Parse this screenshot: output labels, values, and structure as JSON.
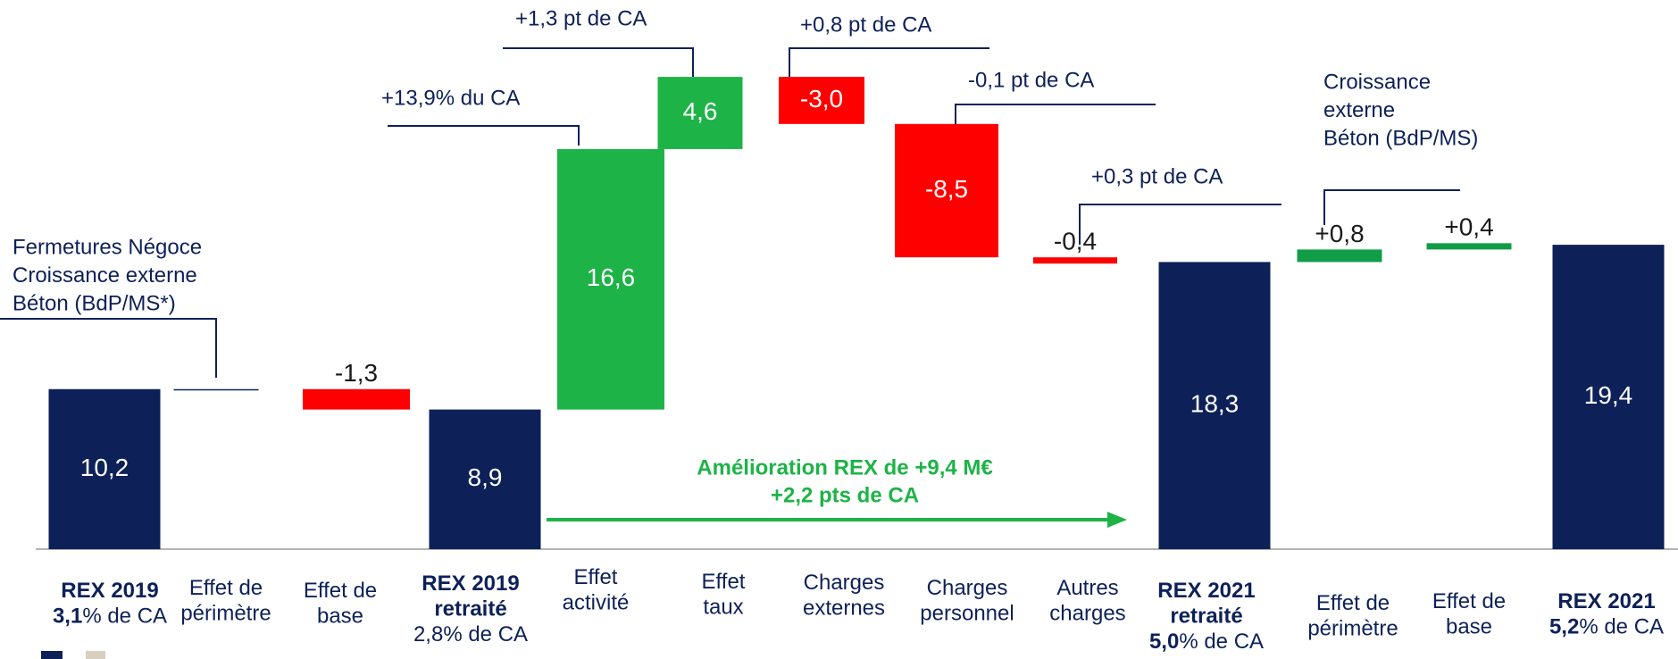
{
  "chart_data": {
    "type": "waterfall",
    "categories": [
      [
        [
          {
            "text": "REX 2019",
            "bold": true
          }
        ],
        [
          {
            "text": "3,1",
            "bold": true
          },
          {
            "text": "% de CA"
          }
        ]
      ],
      [
        [
          {
            "text": "Effet de"
          }
        ],
        [
          {
            "text": "périmètre"
          }
        ]
      ],
      [
        [
          {
            "text": "Effet de"
          }
        ],
        [
          {
            "text": "base"
          }
        ]
      ],
      [
        [
          {
            "text": "REX 2019",
            "bold": true
          }
        ],
        [
          {
            "text": "retraité",
            "bold": true
          }
        ],
        [
          {
            "text": "2,8% de CA"
          }
        ]
      ],
      [
        [
          {
            "text": "Effet"
          }
        ],
        [
          {
            "text": "activité"
          }
        ]
      ],
      [
        [
          {
            "text": "Effet"
          }
        ],
        [
          {
            "text": "taux"
          }
        ]
      ],
      [
        [
          {
            "text": "Charges"
          }
        ],
        [
          {
            "text": "externes"
          }
        ]
      ],
      [
        [
          {
            "text": "Charges"
          }
        ],
        [
          {
            "text": "personnel"
          }
        ]
      ],
      [
        [
          {
            "text": "Autres"
          }
        ],
        [
          {
            "text": "charges"
          }
        ]
      ],
      [
        [
          {
            "text": "REX 2021",
            "bold": true
          }
        ],
        [
          {
            "text": "retraité",
            "bold": true
          }
        ],
        [
          {
            "text": "5,0",
            "bold": true
          },
          {
            "text": "% de CA"
          }
        ]
      ],
      [
        [
          {
            "text": "Effet de"
          }
        ],
        [
          {
            "text": "périmètre"
          }
        ]
      ],
      [
        [
          {
            "text": "Effet de"
          }
        ],
        [
          {
            "text": "base"
          }
        ]
      ],
      [
        [
          {
            "text": "REX 2021",
            "bold": true
          }
        ],
        [
          {
            "text": "5,2",
            "bold": true
          },
          {
            "text": "% de CA"
          }
        ]
      ]
    ],
    "values": [
      10.2,
      0,
      -1.3,
      8.9,
      16.6,
      4.6,
      -3.0,
      -8.5,
      -0.4,
      18.3,
      0.8,
      0.4,
      19.4
    ],
    "value_labels": [
      "10,2",
      null,
      "-1,3",
      "8,9",
      "16,6",
      "4,6",
      "-3,0",
      "-8,5",
      "-0,4",
      "18,3",
      "+0,8",
      "+0,4",
      "19,4"
    ],
    "is_total": [
      true,
      false,
      false,
      true,
      false,
      false,
      false,
      false,
      false,
      true,
      false,
      false,
      true
    ],
    "colors": [
      "#0d2158",
      "#0d2158",
      "#ff0000",
      "#0d2158",
      "#1db347",
      "#1db347",
      "#ff0000",
      "#ff0000",
      "#ff0000",
      "#0d2158",
      "#119c48",
      "#119c48",
      "#0d2158"
    ],
    "ylim": [
      0,
      35
    ],
    "annotations": [
      {
        "lines": [
          "Fermetures Négoce",
          "Croissance externe",
          "Béton (BdP/MS*)"
        ]
      },
      {
        "lines": [
          "+13,9% du CA"
        ]
      },
      {
        "lines": [
          "+1,3 pt  de CA"
        ]
      },
      {
        "lines": [
          "+0,8 pt  de CA"
        ]
      },
      {
        "lines": [
          "-0,1 pt  de CA"
        ]
      },
      {
        "lines": [
          "+0,3 pt  de CA"
        ]
      },
      {
        "lines": [
          "Croissance",
          "externe",
          "Béton (BdP/MS)"
        ]
      }
    ],
    "note": {
      "lines": [
        "Amélioration REX de +9,4 M€",
        "+2,2 pts de CA"
      ],
      "color": "#1db347"
    }
  }
}
